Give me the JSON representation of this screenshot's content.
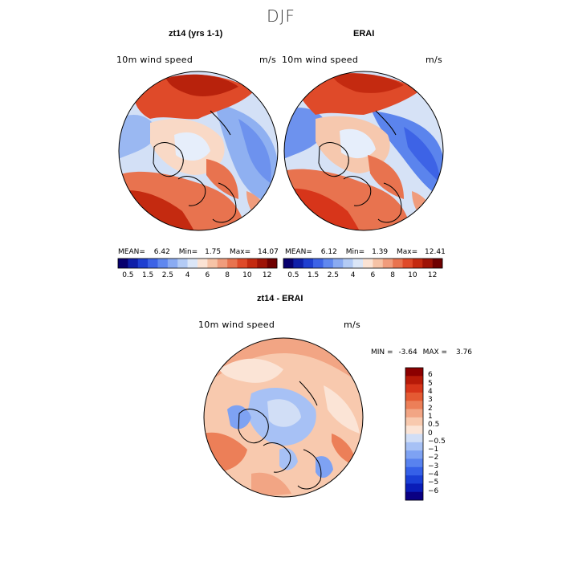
{
  "title": "DJF",
  "panels": [
    {
      "id": "model",
      "title": "zt14 (yrs 1-1)",
      "variable": "10m wind speed",
      "units": "m/s",
      "stats": {
        "mean_label": "MEAN=",
        "mean": "6.42",
        "min_label": "Min=",
        "min": "1.75",
        "max_label": "Max=",
        "max": "14.07"
      }
    },
    {
      "id": "obs",
      "title": "ERAI",
      "variable": "10m wind speed",
      "units": "m/s",
      "stats": {
        "mean_label": "MEAN=",
        "mean": "6.12",
        "min_label": "Min=",
        "min": "1.39",
        "max_label": "Max=",
        "max": "12.41"
      }
    },
    {
      "id": "diff",
      "title": "zt14 - ERAI",
      "variable": "10m wind speed",
      "units": "m/s",
      "stats": {
        "min_label": "MIN =",
        "min": "-3.64",
        "max_label": "MAX =",
        "max": "3.76"
      }
    }
  ],
  "abs_colorbar": {
    "colors": [
      "#08006e",
      "#0f1fa8",
      "#1f3fd0",
      "#3d63e6",
      "#6088ef",
      "#8aabf2",
      "#b3cbf5",
      "#dbe6f7",
      "#fbe3d4",
      "#f6c3a6",
      "#f09c7c",
      "#e8734f",
      "#df4a29",
      "#c42a10",
      "#9e1306",
      "#6f0000"
    ],
    "labels": [
      "0.5",
      "1.5",
      "2.5",
      "4",
      "6",
      "8",
      "10",
      "12"
    ]
  },
  "diff_colorbar": {
    "colors": [
      "#0a0083",
      "#0a1db8",
      "#1a3fd6",
      "#3560e8",
      "#5882ef",
      "#7ea2f3",
      "#a7c1f5",
      "#d1def6",
      "#fbe4d6",
      "#f8c9ae",
      "#f2a584",
      "#ec7f58",
      "#e45a33",
      "#d7351a",
      "#b71a08",
      "#8c0000"
    ],
    "labels": [
      "6",
      "5",
      "4",
      "3",
      "2",
      "1",
      "0.5",
      "0",
      "−0.5",
      "−1",
      "−2",
      "−3",
      "−4",
      "−5",
      "−6"
    ]
  }
}
